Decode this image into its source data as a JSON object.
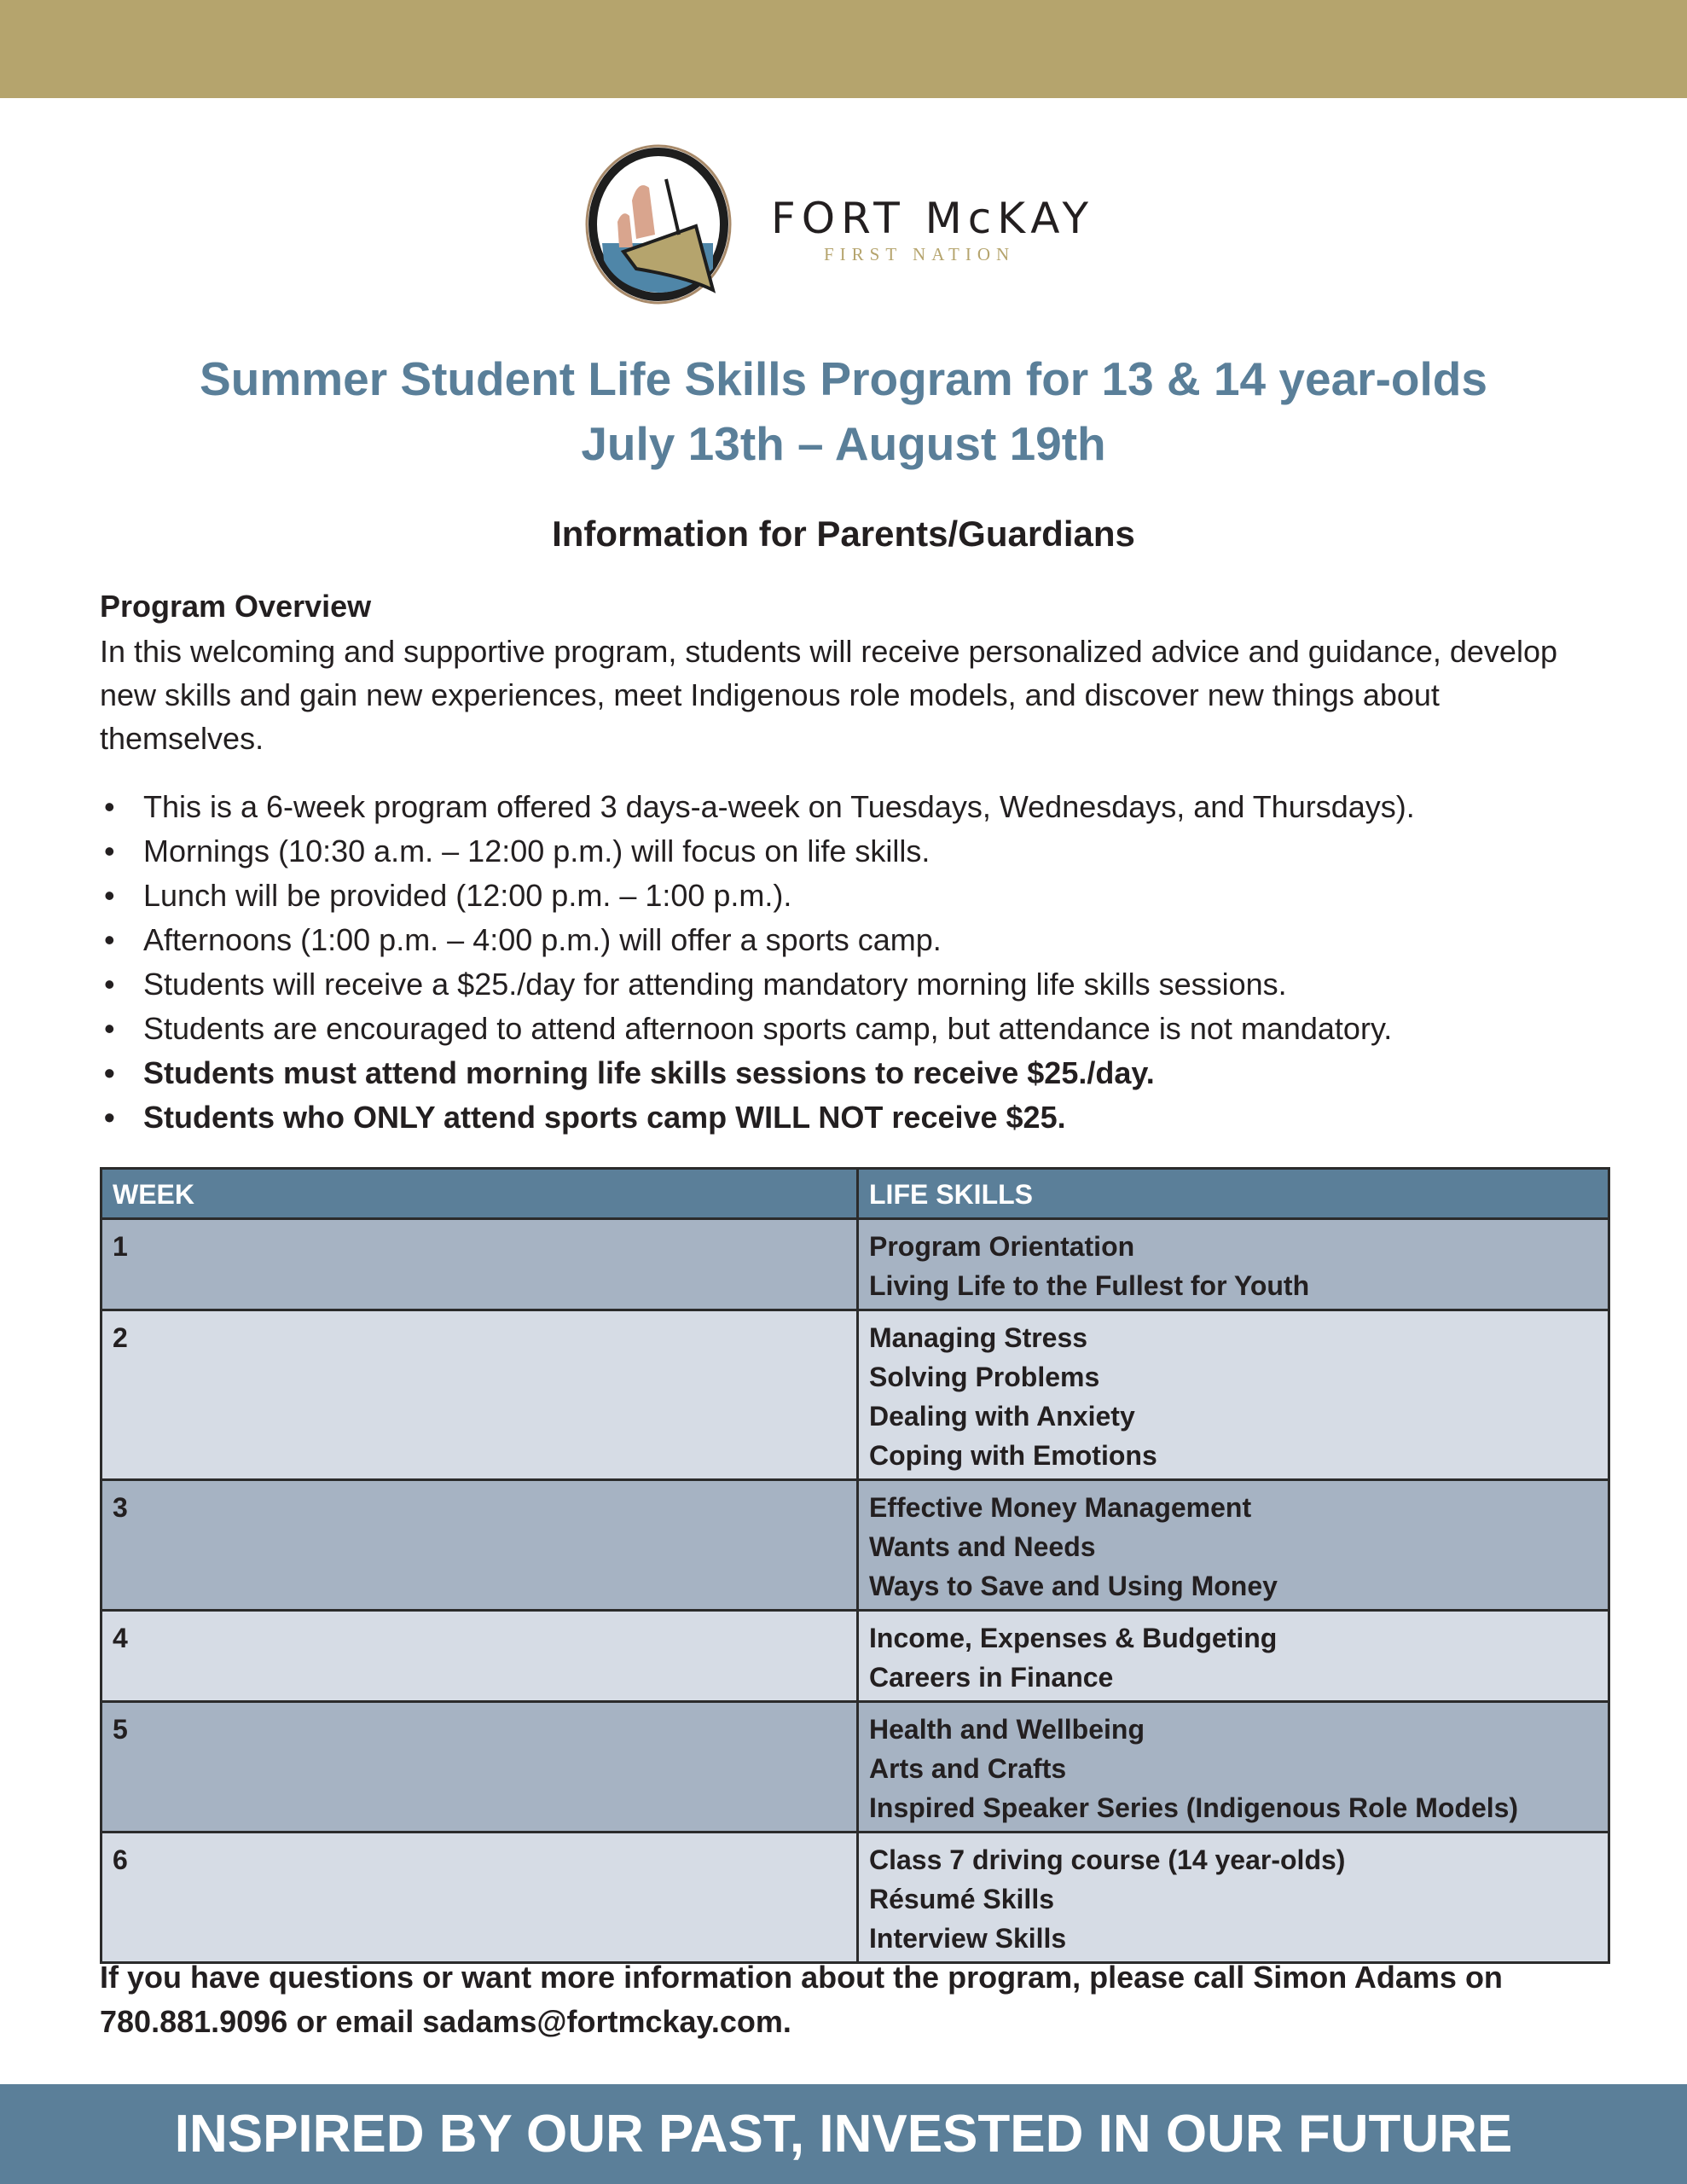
{
  "logo": {
    "name": "FORT McKAY",
    "subtitle": "FIRST NATION"
  },
  "title": {
    "line1": "Summer Student Life Skills Program for 13 & 14 year-olds",
    "line2": "July 13th – August 19th"
  },
  "subtitle": "Information for Parents/Guardians",
  "overview": {
    "heading": "Program Overview",
    "text": "In this welcoming and supportive program, students will receive personalized advice and guidance, develop new skills and gain new experiences, meet Indigenous role models, and discover new things about themselves."
  },
  "bullets": [
    "This is a 6-week program offered 3 days-a-week on Tuesdays, Wednesdays, and Thursdays).",
    "Mornings (10:30 a.m. – 12:00 p.m.) will focus on life skills.",
    "Lunch will be provided (12:00 p.m. – 1:00 p.m.).",
    "Afternoons (1:00 p.m. – 4:00 p.m.) will offer a sports camp.",
    "Students will receive a $25./day for attending mandatory morning life skills sessions.",
    "Students are encouraged to attend afternoon sports camp, but attendance is not mandatory.",
    "Students must attend morning life skills sessions to receive $25./day.",
    "Students who ONLY attend sports camp WILL NOT receive $25."
  ],
  "table": {
    "headers": [
      "WEEK",
      "LIFE SKILLS"
    ],
    "rows": [
      {
        "week": "1",
        "skills": [
          "Program Orientation",
          "Living Life to the Fullest for Youth"
        ]
      },
      {
        "week": "2",
        "skills": [
          "Managing Stress",
          "Solving Problems",
          "Dealing with Anxiety",
          "Coping with Emotions"
        ]
      },
      {
        "week": "3",
        "skills": [
          "Effective Money Management",
          "Wants and Needs",
          "Ways to Save and Using Money"
        ]
      },
      {
        "week": "4",
        "skills": [
          "Income, Expenses & Budgeting",
          "Careers in Finance"
        ]
      },
      {
        "week": "5",
        "skills": [
          "Health and Wellbeing",
          "Arts and Crafts",
          "Inspired Speaker Series (Indigenous Role Models)"
        ]
      },
      {
        "week": "6",
        "skills": [
          "Class 7 driving course (14 year-olds)",
          "Résumé Skills",
          "Interview Skills"
        ]
      }
    ]
  },
  "contact": "If you have questions or want more information about the program, please call Simon Adams on 780.881.9096 or email sadams@fortmckay.com.",
  "tagline": "INSPIRED BY OUR PAST, INVESTED IN OUR FUTURE",
  "colors": {
    "gold": "#b5a46d",
    "blue": "#5b7f99",
    "row_dark": "#a6b3c3",
    "row_light": "#d6dce5"
  }
}
